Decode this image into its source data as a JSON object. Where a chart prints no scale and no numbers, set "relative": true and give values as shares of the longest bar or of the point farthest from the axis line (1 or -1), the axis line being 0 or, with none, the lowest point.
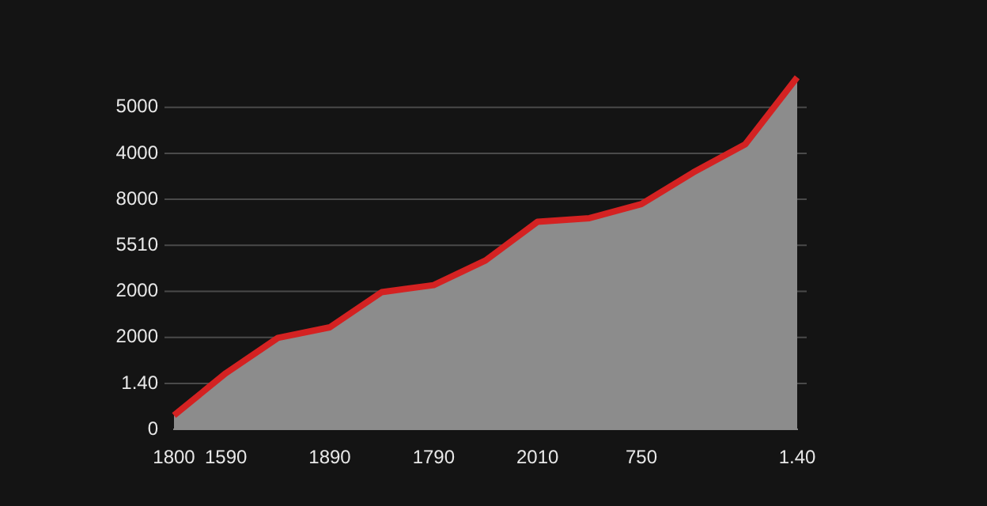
{
  "chart_data": {
    "type": "area",
    "relative": true,
    "categories": [
      "1800",
      "1590",
      null,
      "1890",
      null,
      "1790",
      null,
      "2010",
      null,
      "750",
      null,
      null,
      "1.40"
    ],
    "series": [
      {
        "color": "#d42222",
        "values": [
          0.04,
          0.16,
          0.26,
          0.29,
          0.39,
          0.41,
          0.48,
          0.59,
          0.6,
          0.64,
          0.73,
          0.81,
          1
        ]
      }
    ],
    "annotations": [
      "5000",
      "4000",
      "8000",
      "5510",
      "2000",
      "2000",
      "1.40",
      "0"
    ],
    "grid": "y",
    "legend": false,
    "marker": "none"
  }
}
